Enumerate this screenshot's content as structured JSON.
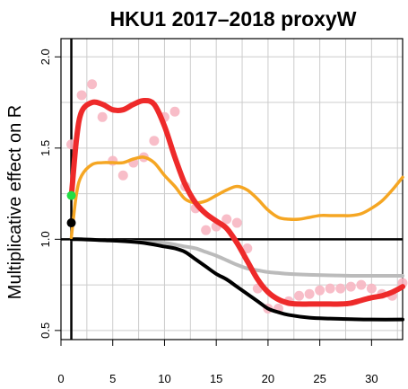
{
  "chart_data": {
    "type": "line",
    "title": "HKU1 2017–2018 proxyW",
    "xlabel": "",
    "ylabel": "Multiplicative effect on R",
    "xlim": [
      0,
      33
    ],
    "ylim": [
      0.45,
      2.1
    ],
    "x_ticks": [
      0,
      5,
      10,
      15,
      20,
      25,
      30
    ],
    "y_ticks": [
      0.5,
      1.0,
      1.5,
      2.0
    ],
    "y_tick_labels": [
      "0.5",
      "1.0",
      "1.5",
      "2.0"
    ],
    "grid": true,
    "reference_lines": {
      "x": 1,
      "y": 1.0
    },
    "colors": {
      "red": "#ee2a2a",
      "orange": "#f5a623",
      "black": "#000000",
      "gray": "#bbbbbb",
      "points": "#f7b6c2",
      "green": "#22dd44",
      "grid": "#cccccc"
    },
    "series": [
      {
        "color": "red",
        "x": [
          1,
          1.5,
          2,
          3,
          4,
          5,
          6,
          7,
          8,
          9,
          10,
          11,
          12,
          13,
          14,
          15,
          16,
          17,
          18,
          19,
          20,
          21,
          22,
          23,
          24,
          25,
          26,
          27,
          28,
          29,
          30,
          31,
          32,
          33
        ],
        "y": [
          1.23,
          1.55,
          1.7,
          1.75,
          1.74,
          1.71,
          1.71,
          1.74,
          1.76,
          1.74,
          1.62,
          1.45,
          1.3,
          1.2,
          1.14,
          1.1,
          1.06,
          0.98,
          0.88,
          0.78,
          0.71,
          0.67,
          0.65,
          0.645,
          0.645,
          0.645,
          0.645,
          0.645,
          0.65,
          0.665,
          0.68,
          0.69,
          0.71,
          0.74
        ]
      },
      {
        "color": "orange",
        "x": [
          1,
          1.5,
          2,
          3,
          4,
          5,
          6,
          7,
          8,
          9,
          10,
          11,
          12,
          13,
          14,
          15,
          16,
          17,
          18,
          19,
          20,
          21,
          22,
          23,
          24,
          25,
          26,
          27,
          28,
          29,
          30,
          31,
          32,
          33
        ],
        "y": [
          1.01,
          1.25,
          1.35,
          1.41,
          1.42,
          1.42,
          1.42,
          1.44,
          1.45,
          1.42,
          1.35,
          1.29,
          1.22,
          1.2,
          1.21,
          1.24,
          1.27,
          1.29,
          1.27,
          1.22,
          1.16,
          1.12,
          1.11,
          1.11,
          1.12,
          1.13,
          1.13,
          1.13,
          1.13,
          1.14,
          1.17,
          1.21,
          1.27,
          1.34
        ]
      },
      {
        "color": "black",
        "x": [
          1,
          2,
          4,
          6,
          8,
          10,
          11,
          12,
          13,
          14,
          15,
          16,
          17,
          18,
          19,
          20,
          21,
          22,
          24,
          26,
          28,
          30,
          33
        ],
        "y": [
          1.0,
          1.0,
          0.995,
          0.99,
          0.98,
          0.96,
          0.95,
          0.93,
          0.89,
          0.85,
          0.81,
          0.78,
          0.74,
          0.7,
          0.66,
          0.62,
          0.6,
          0.585,
          0.57,
          0.565,
          0.562,
          0.56,
          0.56
        ]
      },
      {
        "color": "gray",
        "x": [
          1,
          2,
          4,
          6,
          8,
          10,
          12,
          13,
          14,
          15,
          16,
          17,
          18,
          19,
          20,
          21,
          22,
          24,
          26,
          28,
          30,
          33
        ],
        "y": [
          1.0,
          1.0,
          0.995,
          0.99,
          0.985,
          0.98,
          0.96,
          0.95,
          0.93,
          0.91,
          0.885,
          0.86,
          0.84,
          0.83,
          0.82,
          0.815,
          0.81,
          0.805,
          0.802,
          0.8,
          0.8,
          0.8
        ]
      }
    ],
    "points": {
      "color": "points",
      "x": [
        1,
        2,
        3,
        4,
        5,
        6,
        7,
        8,
        9,
        10,
        11,
        12,
        13,
        14,
        15,
        16,
        17,
        18,
        19,
        20,
        21,
        22,
        23,
        24,
        25,
        26,
        27,
        28,
        29,
        30,
        31,
        32,
        33
      ],
      "y": [
        1.52,
        1.79,
        1.85,
        1.67,
        1.43,
        1.35,
        1.42,
        1.45,
        1.54,
        1.67,
        1.7,
        1.29,
        1.17,
        1.05,
        1.07,
        1.11,
        1.09,
        0.95,
        0.73,
        0.62,
        0.62,
        0.66,
        0.69,
        0.7,
        0.72,
        0.73,
        0.73,
        0.74,
        0.75,
        0.73,
        0.7,
        0.69,
        0.76
      ]
    },
    "markers": [
      {
        "x": 1,
        "y": 1.24,
        "color": "green"
      },
      {
        "x": 1,
        "y": 1.09,
        "color": "black"
      }
    ]
  }
}
